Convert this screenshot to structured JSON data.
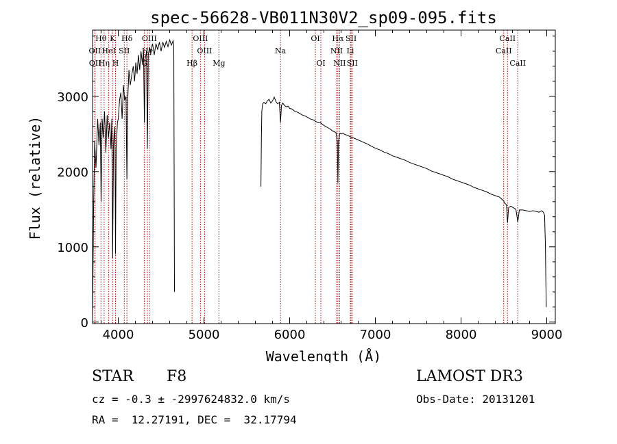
{
  "chart_data": {
    "type": "line",
    "title": "spec-56628-VB011N30V2_sp09-095.fits",
    "xlabel": "Wavelength (Å)",
    "ylabel": "Flux (relative)",
    "xlim": [
      3700,
      9100
    ],
    "ylim": [
      -20,
      3880
    ],
    "x_ticks": [
      4000,
      5000,
      6000,
      7000,
      8000,
      9000
    ],
    "y_ticks": [
      0,
      1000,
      2000,
      3000
    ],
    "x_tick_labels": [
      "4000",
      "5000",
      "6000",
      "7000",
      "8000",
      "9000"
    ],
    "y_tick_labels": [
      "0",
      "1000",
      "2000",
      "3000"
    ],
    "spectrum_segments": [
      [
        [
          3700,
          0
        ],
        [
          3712,
          1500
        ],
        [
          3725,
          2400
        ],
        [
          3740,
          2050
        ],
        [
          3760,
          2700
        ],
        [
          3775,
          2350
        ],
        [
          3790,
          2650
        ],
        [
          3800,
          1600
        ],
        [
          3812,
          2700
        ],
        [
          3825,
          2450
        ],
        [
          3840,
          2800
        ],
        [
          3855,
          2250
        ],
        [
          3870,
          2750
        ],
        [
          3885,
          2450
        ],
        [
          3900,
          2650
        ],
        [
          3915,
          2300
        ],
        [
          3925,
          2700
        ],
        [
          3934,
          850
        ],
        [
          3945,
          2350
        ],
        [
          3955,
          2600
        ],
        [
          3962,
          2300
        ],
        [
          3968,
          900
        ],
        [
          3975,
          2300
        ],
        [
          3990,
          2650
        ],
        [
          4000,
          2700
        ],
        [
          4015,
          2950
        ],
        [
          4030,
          3050
        ],
        [
          4045,
          2700
        ],
        [
          4060,
          3150
        ],
        [
          4075,
          2950
        ],
        [
          4090,
          3000
        ],
        [
          4101,
          1900
        ],
        [
          4112,
          3000
        ],
        [
          4125,
          3350
        ],
        [
          4140,
          3150
        ],
        [
          4160,
          3300
        ],
        [
          4175,
          3400
        ],
        [
          4190,
          3200
        ],
        [
          4205,
          3450
        ],
        [
          4220,
          3300
        ],
        [
          4235,
          3550
        ],
        [
          4250,
          3350
        ],
        [
          4265,
          3600
        ],
        [
          4280,
          3450
        ],
        [
          4295,
          3600
        ],
        [
          4305,
          2650
        ],
        [
          4315,
          3500
        ],
        [
          4330,
          3600
        ],
        [
          4340,
          2300
        ],
        [
          4350,
          3550
        ],
        [
          4365,
          3650
        ],
        [
          4380,
          3600
        ],
        [
          4400,
          3700
        ],
        [
          4420,
          3550
        ],
        [
          4440,
          3700
        ],
        [
          4460,
          3620
        ],
        [
          4480,
          3720
        ],
        [
          4500,
          3600
        ],
        [
          4520,
          3720
        ],
        [
          4540,
          3650
        ],
        [
          4560,
          3730
        ],
        [
          4580,
          3660
        ],
        [
          4600,
          3750
        ],
        [
          4620,
          3680
        ],
        [
          4640,
          3740
        ],
        [
          4648,
          3680
        ],
        [
          4652,
          2000
        ],
        [
          4656,
          400
        ]
      ],
      [
        [
          5665,
          1800
        ],
        [
          5670,
          2450
        ],
        [
          5675,
          2800
        ],
        [
          5685,
          2900
        ],
        [
          5700,
          2920
        ],
        [
          5720,
          2900
        ],
        [
          5740,
          2940
        ],
        [
          5760,
          2960
        ],
        [
          5780,
          2910
        ],
        [
          5800,
          2940
        ],
        [
          5820,
          2990
        ],
        [
          5840,
          2930
        ],
        [
          5860,
          2900
        ],
        [
          5880,
          2920
        ],
        [
          5893,
          2650
        ],
        [
          5905,
          2880
        ],
        [
          5920,
          2910
        ],
        [
          5940,
          2880
        ],
        [
          5960,
          2860
        ],
        [
          5980,
          2870
        ],
        [
          6000,
          2840
        ],
        [
          6030,
          2830
        ],
        [
          6060,
          2800
        ],
        [
          6090,
          2790
        ],
        [
          6120,
          2770
        ],
        [
          6150,
          2750
        ],
        [
          6180,
          2740
        ],
        [
          6210,
          2720
        ],
        [
          6240,
          2700
        ],
        [
          6270,
          2690
        ],
        [
          6300,
          2670
        ],
        [
          6330,
          2650
        ],
        [
          6360,
          2650
        ],
        [
          6390,
          2620
        ],
        [
          6420,
          2600
        ],
        [
          6450,
          2580
        ],
        [
          6480,
          2560
        ],
        [
          6500,
          2540
        ],
        [
          6520,
          2530
        ],
        [
          6540,
          2520
        ],
        [
          6556,
          2400
        ],
        [
          6563,
          1850
        ],
        [
          6570,
          2400
        ],
        [
          6585,
          2510
        ],
        [
          6600,
          2500
        ],
        [
          6620,
          2510
        ],
        [
          6650,
          2490
        ],
        [
          6680,
          2480
        ],
        [
          6710,
          2460
        ],
        [
          6740,
          2450
        ],
        [
          6780,
          2430
        ],
        [
          6820,
          2410
        ],
        [
          6860,
          2390
        ],
        [
          6900,
          2370
        ],
        [
          6950,
          2340
        ],
        [
          7000,
          2310
        ],
        [
          7050,
          2290
        ],
        [
          7100,
          2260
        ],
        [
          7150,
          2240
        ],
        [
          7200,
          2210
        ],
        [
          7250,
          2190
        ],
        [
          7300,
          2170
        ],
        [
          7350,
          2150
        ],
        [
          7400,
          2120
        ],
        [
          7450,
          2100
        ],
        [
          7500,
          2080
        ],
        [
          7550,
          2060
        ],
        [
          7600,
          2040
        ],
        [
          7650,
          2010
        ],
        [
          7700,
          1990
        ],
        [
          7750,
          1970
        ],
        [
          7800,
          1950
        ],
        [
          7850,
          1930
        ],
        [
          7900,
          1900
        ],
        [
          7950,
          1880
        ],
        [
          8000,
          1860
        ],
        [
          8050,
          1840
        ],
        [
          8100,
          1820
        ],
        [
          8150,
          1790
        ],
        [
          8200,
          1770
        ],
        [
          8250,
          1750
        ],
        [
          8300,
          1730
        ],
        [
          8350,
          1700
        ],
        [
          8400,
          1680
        ],
        [
          8450,
          1660
        ],
        [
          8498,
          1610
        ],
        [
          8510,
          1580
        ],
        [
          8530,
          1560
        ],
        [
          8542,
          1320
        ],
        [
          8555,
          1520
        ],
        [
          8580,
          1540
        ],
        [
          8610,
          1520
        ],
        [
          8640,
          1500
        ],
        [
          8662,
          1330
        ],
        [
          8680,
          1490
        ],
        [
          8720,
          1490
        ],
        [
          8760,
          1480
        ],
        [
          8800,
          1470
        ],
        [
          8840,
          1480
        ],
        [
          8880,
          1470
        ],
        [
          8910,
          1460
        ],
        [
          8940,
          1480
        ],
        [
          8960,
          1460
        ],
        [
          8975,
          1420
        ],
        [
          8985,
          1000
        ],
        [
          8990,
          500
        ],
        [
          8995,
          200
        ]
      ]
    ],
    "lines": [
      {
        "label": "Hθ",
        "wl": 3798,
        "row": 1
      },
      {
        "label": "OII",
        "wl": 3727,
        "row": 2
      },
      {
        "label": "OII",
        "wl": 3729,
        "row": 3
      },
      {
        "label": "K",
        "wl": 3934,
        "row": 1
      },
      {
        "label": "HeI",
        "wl": 3889,
        "row": 2
      },
      {
        "label": "Hη",
        "wl": 3835,
        "row": 3
      },
      {
        "label": "Hδ",
        "wl": 4101,
        "row": 1
      },
      {
        "label": "SII",
        "wl": 4070,
        "row": 2
      },
      {
        "label": "H",
        "wl": 3968,
        "row": 3
      },
      {
        "label": "OIII",
        "wl": 4363,
        "row": 1
      },
      {
        "label": "Hγ",
        "wl": 4340,
        "row": 2
      },
      {
        "label": "G",
        "wl": 4305,
        "row": 3
      },
      {
        "label": "OIII",
        "wl": 4959,
        "row": 1
      },
      {
        "label": "OIII",
        "wl": 5007,
        "row": 2
      },
      {
        "label": "Hβ",
        "wl": 4861,
        "row": 3
      },
      {
        "label": "Mg",
        "wl": 5175,
        "row": 3
      },
      {
        "label": "Na",
        "wl": 5893,
        "row": 2
      },
      {
        "label": "OI",
        "wl": 6300,
        "row": 1
      },
      {
        "label": "OI",
        "wl": 6364,
        "row": 3
      },
      {
        "label": "Hα",
        "wl": 6563,
        "row": 1
      },
      {
        "label": "NII",
        "wl": 6548,
        "row": 2
      },
      {
        "label": "NII",
        "wl": 6583,
        "row": 3
      },
      {
        "label": "SII",
        "wl": 6717,
        "row": 1
      },
      {
        "label": "Li",
        "wl": 6708,
        "row": 2
      },
      {
        "label": "SII",
        "wl": 6731,
        "row": 3
      },
      {
        "label": "CaII",
        "wl": 8542,
        "row": 1
      },
      {
        "label": "CaII",
        "wl": 8498,
        "row": 2
      },
      {
        "label": "CaII",
        "wl": 8662,
        "row": 3
      }
    ]
  },
  "info": {
    "object_type": "STAR",
    "subclass": "F8",
    "survey": "LAMOST DR3",
    "cz": "cz = -0.3 ± -2997624832.0 km/s",
    "obs_date": "Obs-Date: 20131201",
    "radec": "RA =  12.27191, DEC =  32.17794"
  }
}
